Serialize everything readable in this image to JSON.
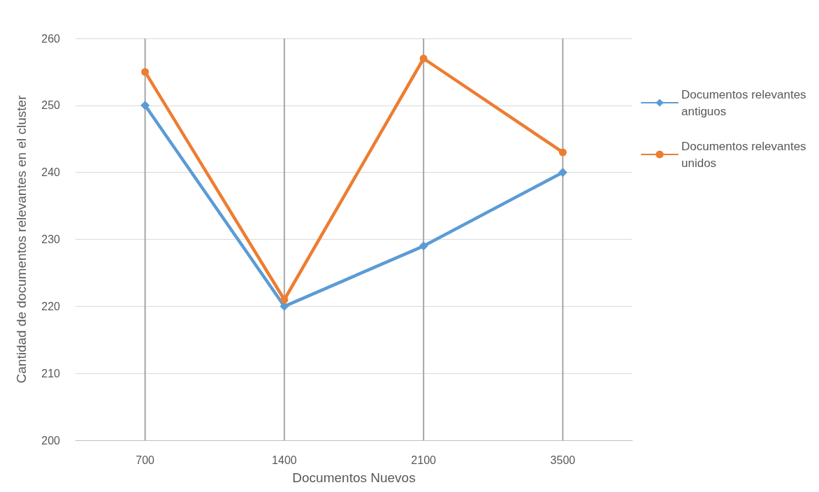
{
  "chart_data": {
    "type": "line",
    "xlabel": "Documentos Nuevos",
    "ylabel": "Cantidad de documentos relevantes en el cluster",
    "categories": [
      "700",
      "1400",
      "2100",
      "3500"
    ],
    "series": [
      {
        "name": "Documentos relevantes antiguos",
        "color": "#5b9bd5",
        "marker": "diamond",
        "values": [
          250,
          220,
          229,
          240
        ]
      },
      {
        "name": "Documentos relevantes unidos",
        "color": "#ed7d31",
        "marker": "circle",
        "values": [
          255,
          221,
          257,
          243
        ]
      }
    ],
    "ylim": [
      200,
      260
    ],
    "yticks": [
      200,
      210,
      220,
      230,
      240,
      250,
      260
    ],
    "grid": true,
    "legend": "right",
    "line_style": "solid"
  }
}
